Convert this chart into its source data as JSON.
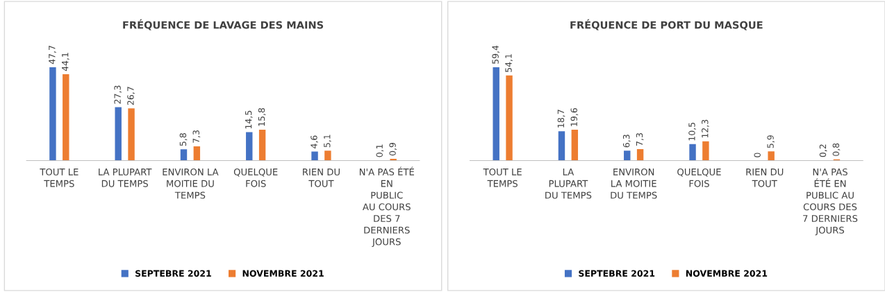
{
  "chart_data": [
    {
      "type": "bar",
      "title": "FRÉQUENCE DE LAVAGE DES MAINS",
      "categories": [
        "TOUT LE\nTEMPS",
        "LA PLUPART\nDU TEMPS",
        "ENVIRON LA\nMOITIE DU\nTEMPS",
        "QUELQUE\nFOIS",
        "RIEN DU\nTOUT",
        "N'A PAS ÉTÉ\nEN\nPUBLIC\nAU COURS\nDES 7\nDERNIERS\nJOURS"
      ],
      "series": [
        {
          "name": "SEPTEBRE 2021",
          "color": "#4472c4",
          "values": [
            47.7,
            27.3,
            5.8,
            14.5,
            4.6,
            0.1
          ],
          "value_labels": [
            "47,7",
            "27,3",
            "5,8",
            "14,5",
            "4,6",
            "0,1"
          ]
        },
        {
          "name": "NOVEMBRE 2021",
          "color": "#ed7d31",
          "values": [
            44.1,
            26.7,
            7.3,
            15.8,
            5.1,
            0.9
          ],
          "value_labels": [
            "44,1",
            "26,7",
            "7,3",
            "15,8",
            "5,1",
            "0,9"
          ]
        }
      ],
      "legend": "bottom",
      "grid": false
    },
    {
      "type": "bar",
      "title": "FRÉQUENCE DE PORT DU MASQUE",
      "categories": [
        "TOUT LE\nTEMPS",
        "LA\nPLUPART\nDU TEMPS",
        "ENVIRON\nLA MOITIE\nDU TEMPS",
        "QUELQUE\nFOIS",
        "RIEN DU\nTOUT",
        "N'A PAS\nÉTÉ EN\nPUBLIC AU\nCOURS DES\n7 DERNIERS\nJOURS"
      ],
      "series": [
        {
          "name": "SEPTEBRE 2021",
          "color": "#4472c4",
          "values": [
            59.4,
            18.7,
            6.3,
            10.5,
            0,
            0.2
          ],
          "value_labels": [
            "59,4",
            "18,7",
            "6,3",
            "10,5",
            "0",
            "0,2"
          ]
        },
        {
          "name": "NOVEMBRE 2021",
          "color": "#ed7d31",
          "values": [
            54.1,
            19.6,
            7.3,
            12.3,
            5.9,
            0.8
          ],
          "value_labels": [
            "54,1",
            "19,6",
            "7,3",
            "12,3",
            "5,9",
            "0,8"
          ]
        }
      ],
      "legend": "bottom",
      "grid": false
    }
  ]
}
